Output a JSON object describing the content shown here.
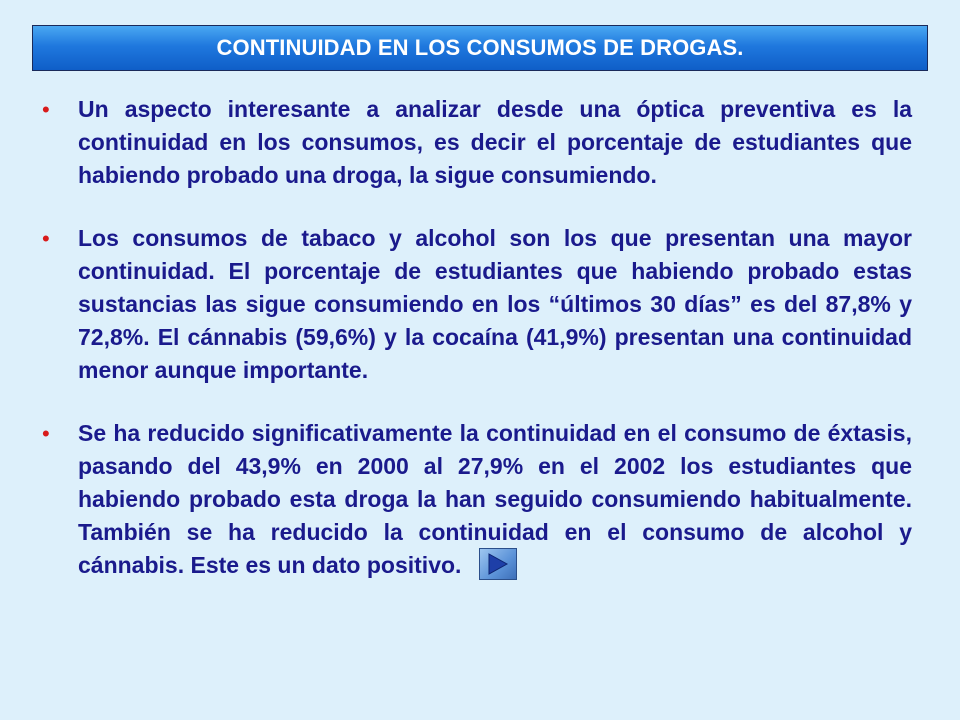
{
  "title": "CONTINUIDAD EN LOS CONSUMOS DE DROGAS.",
  "bullets": [
    "Un aspecto interesante a analizar desde una óptica preventiva es la continuidad en los consumos, es decir el porcentaje de estudiantes que habiendo probado una droga, la sigue consumiendo.",
    "Los consumos de tabaco y  alcohol son los que presentan una mayor continuidad. El porcentaje de estudiantes que habiendo probado estas sustancias las sigue consumiendo en los “últimos 30 días” es del 87,8% y 72,8%. El cánnabis (59,6%) y la cocaína (41,9%) presentan una continuidad menor aunque importante.",
    "Se ha reducido significativamente la continuidad en el consumo de éxtasis, pasando del 43,9% en 2000 al 27,9% en el 2002 los estudiantes que habiendo probado esta droga la han seguido consumiendo habitualmente. También se ha reducido la continuidad en el consumo de alcohol y cánnabis. Este es un dato positivo."
  ],
  "bullet_symbol": "•",
  "colors": {
    "background": "#ddf0fb",
    "title_text": "#ffffff",
    "body_text": "#1a1a8c",
    "bullet": "#d81b1b",
    "title_bar": "#1f78de"
  },
  "icons": {
    "next": "play-triangle-icon"
  }
}
